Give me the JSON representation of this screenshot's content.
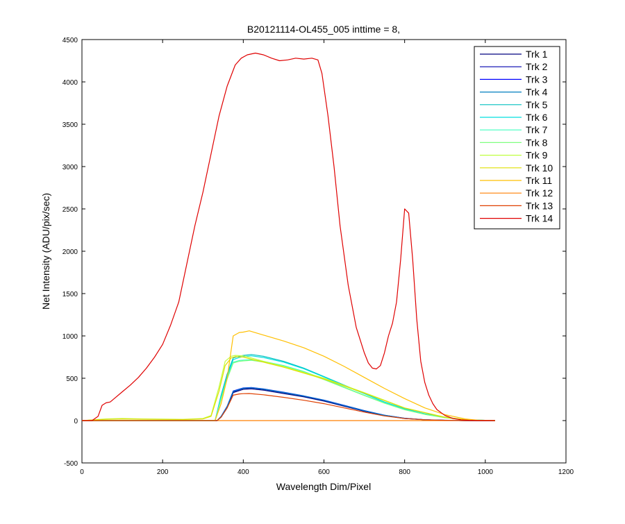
{
  "chart_data": {
    "type": "line",
    "title": "B20121114-OL455_005 inttime = 8,",
    "xlabel": "Wavelength Dim/Pixel",
    "ylabel": "Net Intensity (ADU/pix/sec)",
    "xlim": [
      0,
      1200
    ],
    "ylim": [
      -500,
      4500
    ],
    "xticks": [
      0,
      200,
      400,
      600,
      800,
      1000,
      1200
    ],
    "yticks": [
      -500,
      0,
      500,
      1000,
      1500,
      2000,
      2500,
      3000,
      3500,
      4000,
      4500
    ],
    "grid": false,
    "legend_position": "top-right",
    "series": [
      {
        "name": "Trk 1",
        "color": "#00007f",
        "x": [
          0,
          335,
          345,
          360,
          375,
          400,
          420,
          450,
          500,
          550,
          600,
          650,
          700,
          750,
          800,
          850,
          900,
          950,
          1024
        ],
        "y": [
          0,
          0,
          40,
          150,
          330,
          370,
          375,
          360,
          320,
          280,
          230,
          170,
          110,
          60,
          25,
          10,
          3,
          0,
          0
        ]
      },
      {
        "name": "Trk 2",
        "color": "#0000af",
        "x": [
          0,
          335,
          345,
          360,
          375,
          400,
          420,
          450,
          500,
          550,
          600,
          650,
          700,
          750,
          800,
          850,
          900,
          950,
          1024
        ],
        "y": [
          0,
          0,
          45,
          160,
          340,
          380,
          385,
          370,
          330,
          288,
          238,
          176,
          114,
          62,
          26,
          10,
          3,
          0,
          0
        ]
      },
      {
        "name": "Trk 3",
        "color": "#0000ff",
        "x": [
          0,
          335,
          345,
          360,
          375,
          400,
          420,
          450,
          500,
          550,
          600,
          650,
          700,
          750,
          800,
          850,
          900,
          950,
          1024
        ],
        "y": [
          0,
          0,
          50,
          170,
          350,
          385,
          390,
          375,
          335,
          292,
          242,
          180,
          118,
          64,
          28,
          11,
          4,
          0,
          0
        ]
      },
      {
        "name": "Trk 4",
        "color": "#007fbf",
        "x": [
          0,
          335,
          345,
          360,
          375,
          400,
          420,
          450,
          500,
          550,
          600,
          650,
          700,
          750,
          800,
          850,
          900,
          950,
          1024
        ],
        "y": [
          0,
          0,
          48,
          165,
          345,
          382,
          388,
          372,
          332,
          290,
          240,
          178,
          116,
          63,
          27,
          10,
          3,
          0,
          0
        ]
      },
      {
        "name": "Trk 5",
        "color": "#00bfbf",
        "x": [
          0,
          330,
          345,
          360,
          375,
          390,
          400,
          420,
          450,
          500,
          550,
          600,
          650,
          700,
          750,
          800,
          850,
          900,
          950,
          1024
        ],
        "y": [
          0,
          0,
          300,
          550,
          740,
          760,
          770,
          780,
          760,
          700,
          620,
          520,
          420,
          320,
          220,
          140,
          80,
          40,
          10,
          0
        ]
      },
      {
        "name": "Trk 6",
        "color": "#00dfdf",
        "x": [
          0,
          330,
          345,
          360,
          375,
          390,
          400,
          420,
          450,
          500,
          550,
          600,
          650,
          700,
          750,
          800,
          850,
          900,
          950,
          1024
        ],
        "y": [
          0,
          0,
          280,
          520,
          720,
          745,
          755,
          765,
          745,
          690,
          612,
          515,
          415,
          318,
          218,
          138,
          78,
          38,
          10,
          0
        ]
      },
      {
        "name": "Trk 7",
        "color": "#3fffbf",
        "x": [
          0,
          330,
          345,
          360,
          375,
          390,
          400,
          420,
          450,
          500,
          550,
          600,
          650,
          700,
          750,
          800,
          850,
          900,
          950,
          1024
        ],
        "y": [
          0,
          0,
          260,
          500,
          690,
          710,
          715,
          720,
          700,
          650,
          580,
          490,
          395,
          300,
          210,
          130,
          75,
          35,
          9,
          0
        ]
      },
      {
        "name": "Trk 8",
        "color": "#7fff7f",
        "x": [
          0,
          330,
          345,
          360,
          375,
          390,
          400,
          420,
          450,
          500,
          550,
          600,
          650,
          700,
          750,
          800,
          850,
          900,
          950,
          1024
        ],
        "y": [
          0,
          0,
          250,
          490,
          680,
          700,
          705,
          712,
          692,
          642,
          572,
          484,
          390,
          296,
          206,
          128,
          73,
          34,
          9,
          0
        ]
      },
      {
        "name": "Trk 9",
        "color": "#bfff3f",
        "x": [
          0,
          30,
          60,
          100,
          150,
          200,
          250,
          300,
          320,
          340,
          355,
          370,
          380,
          400,
          420,
          450,
          500,
          600,
          700,
          800,
          900,
          960,
          1024
        ],
        "y": [
          0,
          10,
          20,
          25,
          20,
          18,
          15,
          25,
          60,
          400,
          700,
          760,
          770,
          765,
          740,
          700,
          640,
          500,
          330,
          150,
          40,
          5,
          0
        ]
      },
      {
        "name": "Trk 10",
        "color": "#dfdf00",
        "x": [
          0,
          30,
          60,
          100,
          150,
          200,
          250,
          300,
          320,
          340,
          355,
          370,
          380,
          400,
          420,
          450,
          500,
          600,
          700,
          800,
          900,
          960,
          1024
        ],
        "y": [
          0,
          8,
          15,
          20,
          16,
          14,
          12,
          20,
          50,
          350,
          650,
          740,
          755,
          750,
          725,
          690,
          630,
          492,
          325,
          148,
          38,
          5,
          0
        ]
      },
      {
        "name": "Trk 11",
        "color": "#ffbf00",
        "x": [
          0,
          330,
          345,
          360,
          375,
          390,
          400,
          415,
          450,
          500,
          550,
          600,
          650,
          700,
          750,
          800,
          850,
          900,
          950,
          980,
          1024
        ],
        "y": [
          0,
          0,
          200,
          500,
          1000,
          1040,
          1045,
          1060,
          1010,
          940,
          860,
          760,
          640,
          510,
          380,
          260,
          150,
          70,
          20,
          5,
          0
        ]
      },
      {
        "name": "Trk 12",
        "color": "#ff7f00",
        "x": [
          0,
          1024
        ],
        "y": [
          0,
          0
        ]
      },
      {
        "name": "Trk 13",
        "color": "#df3f00",
        "x": [
          0,
          335,
          345,
          360,
          375,
          390,
          400,
          415,
          450,
          500,
          550,
          600,
          650,
          700,
          750,
          800,
          850,
          900,
          950,
          1024
        ],
        "y": [
          0,
          0,
          40,
          150,
          300,
          315,
          318,
          320,
          305,
          275,
          240,
          200,
          150,
          100,
          55,
          25,
          10,
          3,
          0,
          0
        ]
      },
      {
        "name": "Trk 14",
        "color": "#df0000",
        "x": [
          0,
          25,
          40,
          50,
          60,
          70,
          80,
          100,
          120,
          140,
          160,
          180,
          200,
          220,
          240,
          260,
          280,
          300,
          320,
          340,
          360,
          380,
          395,
          410,
          430,
          450,
          470,
          490,
          510,
          530,
          550,
          570,
          585,
          595,
          610,
          625,
          640,
          660,
          680,
          700,
          710,
          720,
          730,
          740,
          750,
          760,
          770,
          780,
          790,
          800,
          810,
          820,
          830,
          840,
          850,
          860,
          870,
          880,
          900,
          920,
          940,
          960,
          980,
          1000,
          1024
        ],
        "y": [
          0,
          0,
          50,
          180,
          210,
          220,
          260,
          340,
          420,
          510,
          620,
          750,
          900,
          1130,
          1400,
          1850,
          2300,
          2700,
          3150,
          3600,
          3950,
          4200,
          4280,
          4320,
          4340,
          4320,
          4280,
          4250,
          4260,
          4280,
          4270,
          4280,
          4260,
          4100,
          3600,
          3000,
          2300,
          1600,
          1100,
          800,
          680,
          620,
          610,
          650,
          800,
          1000,
          1150,
          1400,
          1900,
          2500,
          2450,
          1900,
          1200,
          700,
          450,
          300,
          200,
          130,
          60,
          25,
          10,
          3,
          0,
          0,
          0
        ]
      }
    ]
  }
}
